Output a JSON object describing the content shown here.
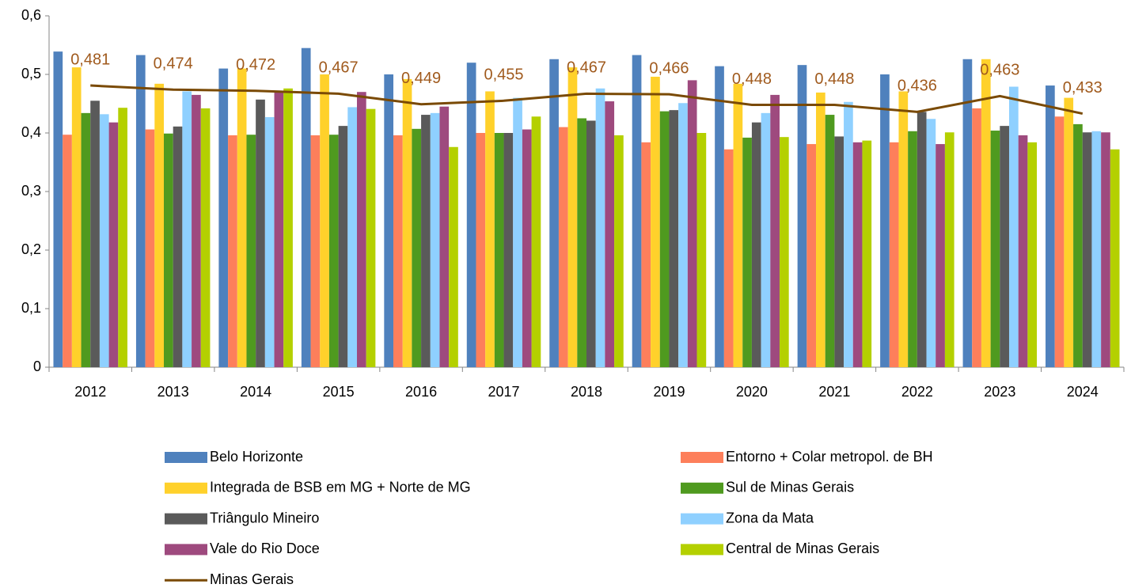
{
  "chart_data": {
    "type": "bar",
    "categories": [
      "2012",
      "2013",
      "2014",
      "2015",
      "2016",
      "2017",
      "2018",
      "2019",
      "2020",
      "2021",
      "2022",
      "2023",
      "2024"
    ],
    "series": [
      {
        "name": "Belo Horizonte",
        "color": "#4f81bd",
        "values": [
          0.539,
          0.533,
          0.51,
          0.545,
          0.5,
          0.52,
          0.526,
          0.533,
          0.514,
          0.516,
          0.5,
          0.526,
          0.481
        ]
      },
      {
        "name": "Entorno + Colar metropol. de BH",
        "color": "#fd7f5b",
        "values": [
          0.397,
          0.406,
          0.396,
          0.396,
          0.396,
          0.4,
          0.41,
          0.384,
          0.372,
          0.381,
          0.384,
          0.442,
          0.428
        ]
      },
      {
        "name": "Integrada de BSB em MG + Norte de MG",
        "color": "#ffd12b",
        "values": [
          0.512,
          0.484,
          0.51,
          0.5,
          0.492,
          0.471,
          0.512,
          0.496,
          0.484,
          0.469,
          0.471,
          0.526,
          0.46
        ]
      },
      {
        "name": "Sul de Minas Gerais",
        "color": "#4f9a1f",
        "values": [
          0.434,
          0.399,
          0.397,
          0.397,
          0.407,
          0.4,
          0.425,
          0.437,
          0.392,
          0.431,
          0.403,
          0.404,
          0.415
        ]
      },
      {
        "name": "Triângulo Mineiro",
        "color": "#5a5a5a",
        "values": [
          0.455,
          0.411,
          0.457,
          0.412,
          0.431,
          0.4,
          0.421,
          0.439,
          0.418,
          0.394,
          0.436,
          0.412,
          0.401
        ]
      },
      {
        "name": "Zona da Mata",
        "color": "#8fd0ff",
        "values": [
          0.432,
          0.471,
          0.427,
          0.444,
          0.434,
          0.46,
          0.476,
          0.451,
          0.434,
          0.453,
          0.424,
          0.479,
          0.403
        ]
      },
      {
        "name": "Vale do Rio Doce",
        "color": "#9e4a7e",
        "values": [
          0.418,
          0.465,
          0.47,
          0.47,
          0.445,
          0.406,
          0.454,
          0.49,
          0.465,
          0.384,
          0.381,
          0.396,
          0.401
        ]
      },
      {
        "name": "Central de Minas Gerais",
        "color": "#b4d000",
        "values": [
          0.443,
          0.442,
          0.476,
          0.441,
          0.376,
          0.428,
          0.396,
          0.4,
          0.393,
          0.387,
          0.401,
          0.384,
          0.372
        ]
      },
      {
        "name": "Minas Gerais",
        "type": "line",
        "color": "#7a4a05",
        "label_color": "#a05a1d",
        "values": [
          0.481,
          0.474,
          0.472,
          0.467,
          0.449,
          0.455,
          0.467,
          0.466,
          0.448,
          0.448,
          0.436,
          0.463,
          0.433
        ],
        "value_labels": [
          "0,481",
          "0,474",
          "0,472",
          "0,467",
          "0,449",
          "0,455",
          "0,467",
          "0,466",
          "0,448",
          "0,448",
          "0,436",
          "0,463",
          "0,433"
        ]
      }
    ],
    "ylim": [
      0,
      0.6
    ],
    "yticks": [
      0,
      {
        "value": 0.1,
        "label": "0,1"
      },
      {
        "value": 0.2,
        "label": "0,2"
      },
      {
        "value": 0.3,
        "label": "0,3"
      },
      {
        "value": 0.4,
        "label": "0,4"
      },
      {
        "value": 0.5,
        "label": "0,5"
      },
      {
        "value": 0.6,
        "label": "0,6"
      }
    ],
    "grid": false,
    "legend": "bottom"
  }
}
